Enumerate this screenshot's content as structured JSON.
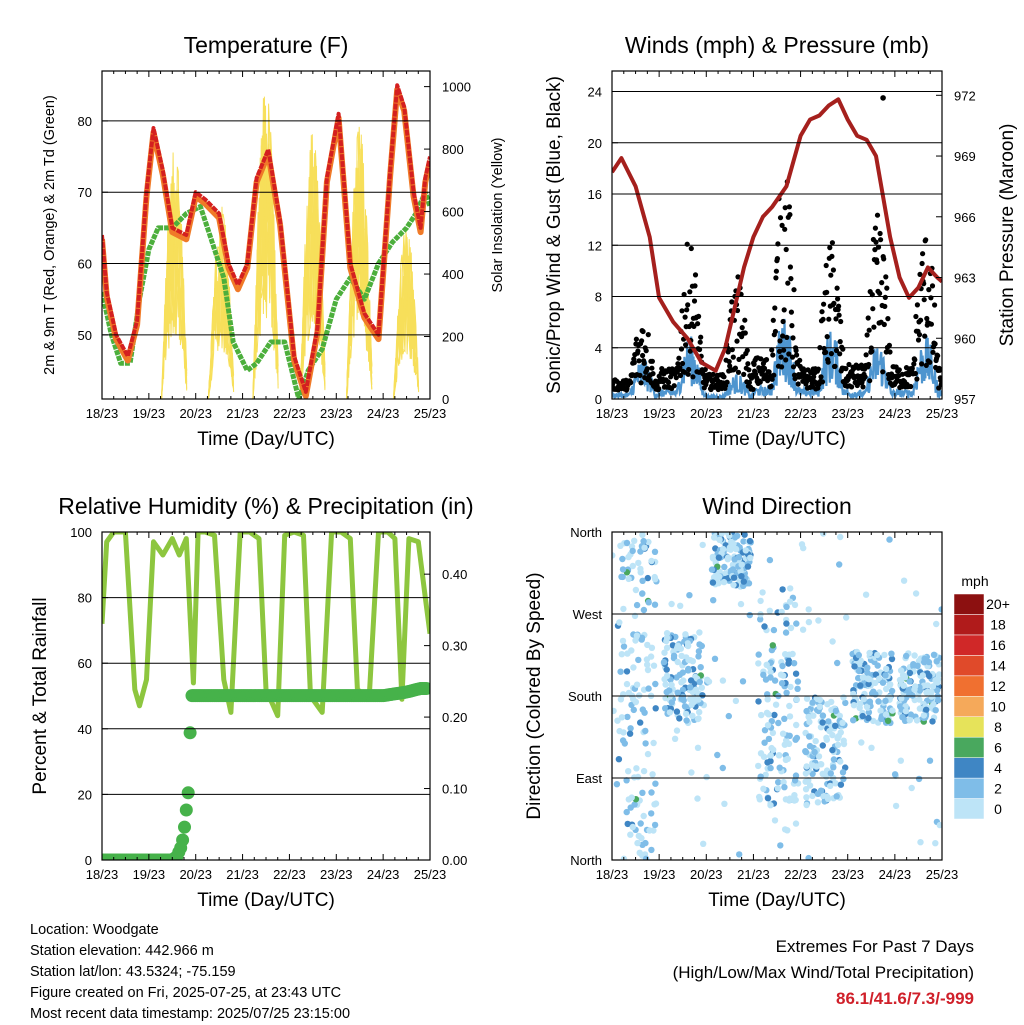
{
  "chart_data": [
    {
      "type": "line",
      "title": "Temperature (F)",
      "xlabel": "Time (Day/UTC)",
      "ylabel": "2m & 9m T (Red, Orange) & 2m Td (Green)",
      "ylabel_right": "Solar Insolation (Yellow)",
      "x_ticks": [
        "18/23",
        "19/23",
        "20/23",
        "21/23",
        "22/23",
        "23/23",
        "24/23",
        "25/23"
      ],
      "ylim": [
        41,
        87
      ],
      "y_ticks": [
        50,
        60,
        70,
        80
      ],
      "ylim_right": [
        0,
        1050
      ],
      "y_ticks_right": [
        0,
        200,
        400,
        600,
        800,
        1000
      ],
      "grid": "horizontal",
      "colors": {
        "t2m": "#d42020",
        "t9m": "#f07a28",
        "td2m": "#4caf3c",
        "solar": "#f7df5a"
      },
      "series": [
        {
          "key": "t2m",
          "x": [
            0,
            0.1,
            0.3,
            0.55,
            0.75,
            0.95,
            1.1,
            1.3,
            1.5,
            1.8,
            2.0,
            2.2,
            2.5,
            2.7,
            2.9,
            3.1,
            3.3,
            3.55,
            3.8,
            4.1,
            4.35,
            4.6,
            4.8,
            5.05,
            5.3,
            5.6,
            5.9,
            6.15,
            6.3,
            6.45,
            6.65,
            6.8,
            6.9,
            7.0
          ],
          "values": [
            64,
            56,
            50,
            47,
            52,
            70,
            79,
            73,
            65,
            64,
            70,
            69,
            67,
            60,
            57,
            60,
            72,
            76,
            66,
            47,
            42,
            51,
            72,
            81,
            60,
            53,
            50,
            73,
            85,
            82,
            70,
            65,
            72,
            75
          ]
        },
        {
          "key": "td2m",
          "x": [
            0,
            0.2,
            0.4,
            0.6,
            0.8,
            1.0,
            1.2,
            1.5,
            1.8,
            2.1,
            2.3,
            2.6,
            2.8,
            3.1,
            3.3,
            3.6,
            3.9,
            4.2,
            4.4,
            4.7,
            5.0,
            5.3,
            5.6,
            5.9,
            6.2,
            6.5,
            6.7,
            6.9,
            7.0
          ],
          "values": [
            56,
            50,
            46,
            46,
            55,
            62,
            65,
            65,
            67,
            68,
            64,
            58,
            49,
            45,
            46,
            49,
            49,
            41,
            45,
            48,
            55,
            58,
            55,
            60,
            63,
            65,
            67,
            70,
            68
          ]
        },
        {
          "key": "solar",
          "day_peaks": [
            {
              "x": 1.55,
              "peak": 820
            },
            {
              "x": 2.55,
              "peak": 620
            },
            {
              "x": 3.5,
              "peak": 1020
            },
            {
              "x": 4.5,
              "peak": 880
            },
            {
              "x": 5.5,
              "peak": 900
            },
            {
              "x": 6.5,
              "peak": 560
            }
          ]
        }
      ]
    },
    {
      "type": "scatter",
      "title": "Winds (mph) & Pressure (mb)",
      "xlabel": "Time (Day/UTC)",
      "ylabel": "Sonic/Prop Wind & Gust (Blue, Black)",
      "ylabel_right": "Station Pressure (Maroon)",
      "x_ticks": [
        "18/23",
        "19/23",
        "20/23",
        "21/23",
        "22/23",
        "23/23",
        "24/23",
        "25/23"
      ],
      "ylim": [
        0,
        25.6
      ],
      "y_ticks": [
        0,
        4,
        8,
        12,
        16,
        20,
        24
      ],
      "ylim_right": [
        957,
        973.2
      ],
      "y_ticks_right": [
        957,
        960,
        963,
        966,
        969,
        972
      ],
      "grid": "horizontal",
      "colors": {
        "wind": "#4e95cf",
        "gust": "#000000",
        "pressure": "#a5201d"
      },
      "series": [
        {
          "key": "pressure",
          "x": [
            0,
            0.2,
            0.5,
            0.8,
            1.0,
            1.3,
            1.6,
            1.9,
            2.2,
            2.4,
            2.6,
            2.8,
            3.0,
            3.2,
            3.4,
            3.7,
            4.0,
            4.2,
            4.4,
            4.6,
            4.8,
            5.0,
            5.2,
            5.4,
            5.6,
            5.9,
            6.1,
            6.3,
            6.5,
            6.7,
            6.9,
            7.0
          ],
          "values": [
            968.2,
            968.9,
            967.5,
            965.0,
            962.0,
            960.8,
            960.0,
            958.8,
            958.4,
            959.5,
            961.5,
            963.5,
            965.0,
            966.0,
            966.5,
            967.5,
            970.0,
            970.8,
            971.0,
            971.5,
            971.8,
            970.8,
            970.0,
            969.8,
            969.0,
            965.0,
            963.0,
            962.0,
            962.5,
            963.5,
            963.0,
            962.8
          ]
        },
        {
          "key": "wind",
          "daily_max": [
            3.2,
            5.0,
            2.0,
            6.5,
            5.5,
            4.5,
            5.0,
            4.0
          ]
        },
        {
          "key": "gust",
          "daily_max": [
            6.0,
            12.0,
            9.0,
            18.0,
            12.0,
            14.0,
            13.0,
            12.0
          ],
          "max": 23.5
        }
      ]
    },
    {
      "type": "line",
      "title": "Relative Humidity (%) & Precipitation (in)",
      "xlabel": "Time (Day/UTC)",
      "ylabel": "Percent & Total Rainfall",
      "x_ticks": [
        "18/23",
        "19/23",
        "20/23",
        "21/23",
        "22/23",
        "23/23",
        "24/23",
        "25/23"
      ],
      "ylim": [
        0,
        100
      ],
      "y_ticks": [
        0,
        20,
        40,
        60,
        80,
        100
      ],
      "ylim_right": [
        0,
        0.459
      ],
      "y_ticks_right": [
        "0.00",
        "0.10",
        "0.20",
        "0.30",
        "0.40"
      ],
      "grid": "horizontal",
      "colors": {
        "rh": "#8dc63f",
        "precip": "#46b24a"
      },
      "series": [
        {
          "key": "rh",
          "x": [
            0,
            0.1,
            0.25,
            0.5,
            0.7,
            0.8,
            0.95,
            1.1,
            1.3,
            1.5,
            1.65,
            1.8,
            1.95,
            2.05,
            2.2,
            2.4,
            2.6,
            2.75,
            2.95,
            3.15,
            3.35,
            3.5,
            3.75,
            3.9,
            4.1,
            4.3,
            4.45,
            4.7,
            4.9,
            5.1,
            5.3,
            5.45,
            5.7,
            5.9,
            6.1,
            6.25,
            6.4,
            6.55,
            6.75,
            6.9,
            7.0
          ],
          "values": [
            72,
            97,
            100,
            100,
            52,
            47,
            55,
            97,
            93,
            98,
            93,
            98,
            54,
            100,
            100,
            99,
            55,
            45,
            100,
            100,
            98,
            52,
            44,
            99,
            100,
            99,
            50,
            45,
            100,
            100,
            98,
            52,
            49,
            100,
            100,
            98,
            49,
            98,
            97,
            80,
            69
          ]
        },
        {
          "key": "precip",
          "x": [
            0,
            0.5,
            1.0,
            1.5,
            1.6,
            1.7,
            1.75,
            1.8,
            1.85,
            1.9,
            2.0,
            3.0,
            4.0,
            5.0,
            6.0,
            6.5,
            6.8,
            7.0
          ],
          "values": [
            0,
            0,
            0,
            0,
            0.005,
            0.02,
            0.04,
            0.07,
            0.1,
            0.23,
            0.23,
            0.23,
            0.23,
            0.23,
            0.23,
            0.235,
            0.24,
            0.24
          ]
        }
      ]
    },
    {
      "type": "scatter",
      "title": "Wind Direction",
      "xlabel": "Time (Day/UTC)",
      "ylabel": "Direction (Colored By Speed)",
      "x_ticks": [
        "18/23",
        "19/23",
        "20/23",
        "21/23",
        "22/23",
        "23/23",
        "24/23",
        "25/23"
      ],
      "y_ticks": [
        "North",
        "East",
        "South",
        "West",
        "North"
      ],
      "grid": "horizontal",
      "colorbar": {
        "title": "mph",
        "labels": [
          "0",
          "2",
          "4",
          "6",
          "8",
          "10",
          "12",
          "14",
          "16",
          "18",
          "20+"
        ],
        "colors": [
          "#bde4f7",
          "#7fbde8",
          "#3f86c4",
          "#49a85e",
          "#e6e35a",
          "#f5a95a",
          "#f07030",
          "#e04a2a",
          "#d02828",
          "#b01b1b",
          "#8c1010"
        ]
      },
      "series": [
        {
          "key": "direction",
          "note_clusters": [
            {
              "day": 0,
              "dir_range": [
                0,
                360
              ]
            },
            {
              "day": 1,
              "dir_range": [
                150,
                250
              ]
            },
            {
              "day": 2,
              "dir_range": [
                300,
                360
              ]
            },
            {
              "day": 3,
              "dir_range": [
                60,
                300
              ]
            },
            {
              "day": 4,
              "dir_range": [
                60,
                180
              ]
            },
            {
              "day": 5,
              "dir_range": [
                150,
                230
              ]
            },
            {
              "day": 6,
              "dir_range": [
                150,
                230
              ]
            }
          ]
        }
      ]
    }
  ],
  "info": {
    "location": "Location: Woodgate",
    "elevation": "Station elevation: 442.966 m",
    "latlon": "Station lat/lon: 43.5324; -75.159",
    "created": "Figure created on Fri, 2025-07-25, at 23:43 UTC",
    "timestamp": "Most recent data timestamp: 2025/07/25 23:15:00"
  },
  "extremes": {
    "line1": "Extremes For Past 7 Days",
    "line2": "(High/Low/Max Wind/Total Precipitation)",
    "values": "86.1/41.6/7.3/-999"
  }
}
